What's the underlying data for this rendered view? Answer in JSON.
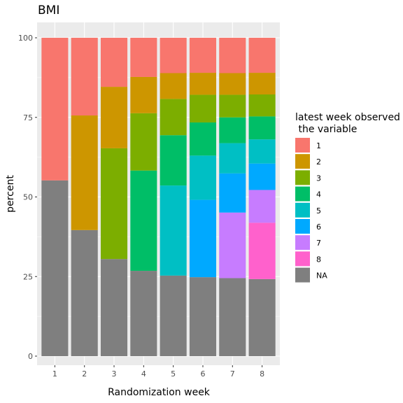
{
  "chart_data": {
    "type": "bar",
    "stacked": true,
    "title": "BMI",
    "xlabel": "Randomization week",
    "ylabel": "percent",
    "ylim": [
      0,
      100
    ],
    "yticks": [
      0,
      25,
      50,
      75,
      100
    ],
    "grid": true,
    "legend_position": "right",
    "legend_title": [
      "latest week observed",
      " the variable"
    ],
    "categories": [
      "1",
      "2",
      "3",
      "4",
      "5",
      "6",
      "7",
      "8"
    ],
    "series": [
      {
        "name": "NA",
        "color": "#7f7f7f",
        "values": [
          55.2,
          39.6,
          30.5,
          26.8,
          25.3,
          24.8,
          24.5,
          24.2
        ]
      },
      {
        "name": "8",
        "color": "#ff61cc",
        "values": [
          0,
          0,
          0,
          0,
          0,
          0,
          0,
          17.7
        ]
      },
      {
        "name": "7",
        "color": "#c77cff",
        "values": [
          0,
          0,
          0,
          0,
          0,
          0,
          20.6,
          10.3
        ]
      },
      {
        "name": "6",
        "color": "#00a9ff",
        "values": [
          0,
          0,
          0,
          0,
          0,
          24.3,
          12.3,
          8.3
        ]
      },
      {
        "name": "5",
        "color": "#00bfc4",
        "values": [
          0,
          0,
          0,
          0,
          28.3,
          13.9,
          9.5,
          7.6
        ]
      },
      {
        "name": "4",
        "color": "#00be67",
        "values": [
          0,
          0,
          0,
          31.5,
          15.8,
          10.4,
          8.1,
          7.2
        ]
      },
      {
        "name": "3",
        "color": "#7cae00",
        "values": [
          0,
          0,
          34.8,
          18.0,
          11.4,
          8.7,
          7.1,
          6.9
        ]
      },
      {
        "name": "2",
        "color": "#cd9600",
        "values": [
          0,
          36.0,
          19.3,
          11.4,
          8.1,
          6.9,
          6.8,
          6.8
        ]
      },
      {
        "name": "1",
        "color": "#f8766d",
        "values": [
          44.8,
          24.4,
          15.4,
          12.3,
          11.1,
          11.0,
          11.1,
          11.0
        ]
      }
    ],
    "legend_order": [
      "1",
      "2",
      "3",
      "4",
      "5",
      "6",
      "7",
      "8",
      "NA"
    ]
  }
}
